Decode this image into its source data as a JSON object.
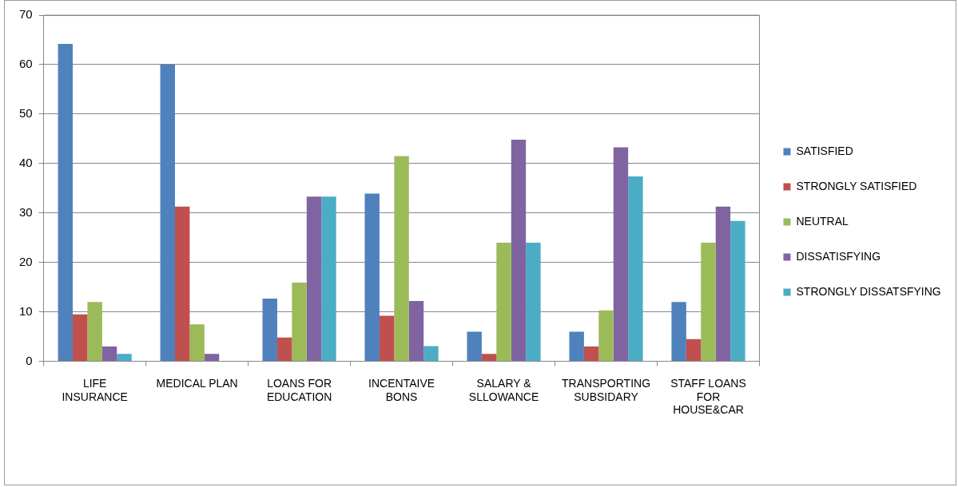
{
  "chart_data": {
    "type": "bar",
    "categories": [
      "LIFE INSURANCE",
      "MEDICAL PLAN",
      "LOANS FOR EDUCATION",
      "INCENTAIVE BONS",
      "SALARY & SLLOWANCE",
      "TRANSPORTING SUBSIDARY",
      "STAFF LOANS FOR HOUSE&CAR"
    ],
    "series": [
      {
        "name": "SATISFIED",
        "color": "#4f81bd",
        "values": [
          64.2,
          60,
          12.7,
          33.9,
          6,
          6,
          12
        ]
      },
      {
        "name": "STRONGLY SATISFIED",
        "color": "#c0504d",
        "values": [
          9.5,
          31.3,
          4.8,
          9.2,
          1.5,
          3,
          4.5
        ]
      },
      {
        "name": "NEUTRAL",
        "color": "#9bbb59",
        "values": [
          12,
          7.5,
          15.9,
          41.5,
          24,
          10.3,
          24
        ]
      },
      {
        "name": "DISSATISFYING",
        "color": "#8064a2",
        "values": [
          3,
          1.5,
          33.3,
          12.2,
          44.8,
          43.3,
          31.3
        ]
      },
      {
        "name": "STRONGLY DISSATSFYING",
        "color": "#4bacc6",
        "values": [
          1.5,
          0,
          33.3,
          3.1,
          24,
          37.4,
          28.4
        ]
      }
    ],
    "ylim": [
      0,
      70
    ],
    "yticks": [
      0,
      10,
      20,
      30,
      40,
      50,
      60,
      70
    ],
    "grid": "y",
    "legend": "right"
  }
}
